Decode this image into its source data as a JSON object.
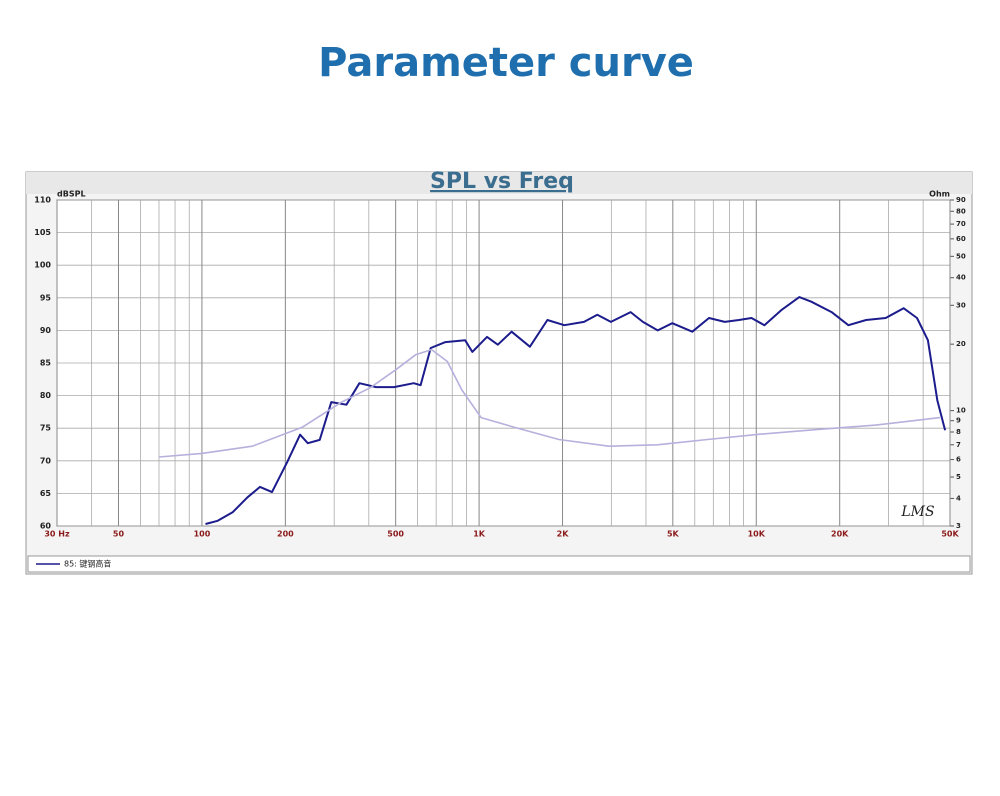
{
  "page_title": "Parameter curve",
  "chart_data": {
    "type": "line",
    "title": "SPL vs Freq",
    "ylabel": "dBSPL",
    "y2label": "Ohm",
    "logo": "LMS",
    "xlog": true,
    "y2log": true,
    "grid": true,
    "xlim": [
      30,
      50000
    ],
    "xticks": [
      {
        "value": 30,
        "label": "30 Hz"
      },
      50,
      100,
      200,
      500,
      {
        "value": 1000,
        "label": "1K"
      },
      {
        "value": 2000,
        "label": "2K"
      },
      {
        "value": 5000,
        "label": "5K"
      },
      {
        "value": 10000,
        "label": "10K"
      },
      {
        "value": 20000,
        "label": "20K"
      },
      {
        "value": 50000,
        "label": "50K"
      }
    ],
    "xminor": [
      40,
      60,
      70,
      80,
      90,
      300,
      400,
      600,
      700,
      800,
      900,
      3000,
      4000,
      6000,
      7000,
      8000,
      9000,
      30000,
      40000
    ],
    "ylim": [
      60,
      110
    ],
    "yticks": [
      60,
      65,
      70,
      75,
      80,
      85,
      90,
      95,
      100,
      105,
      110
    ],
    "y2lim": [
      3,
      90
    ],
    "y2ticks": [
      3,
      4,
      5,
      6,
      7,
      8,
      9,
      10,
      20,
      30,
      40,
      50,
      60,
      70,
      80,
      90
    ],
    "series": [
      {
        "name": "85: 键钢高音",
        "color": "#1c1c8c",
        "x": [
          103,
          114,
          129,
          146,
          162,
          179,
          203,
          226,
          241,
          266,
          293,
          332,
          370,
          425,
          493,
          581,
          615,
          669,
          756,
          890,
          945,
          1068,
          1168,
          1310,
          1525,
          1764,
          2030,
          2390,
          2670,
          2990,
          3520,
          3900,
          4410,
          4980,
          5880,
          6750,
          7700,
          8660,
          9610,
          10700,
          12300,
          14300,
          15800,
          18700,
          21500,
          24900,
          29300,
          34000,
          38000,
          41600,
          45000,
          48000
        ],
        "values": [
          60.3,
          60.8,
          62.1,
          64.4,
          66,
          65.2,
          69.8,
          74,
          72.7,
          73.2,
          79,
          78.6,
          81.9,
          81.3,
          81.3,
          81.9,
          81.6,
          87.3,
          88.2,
          88.5,
          86.7,
          89,
          87.8,
          89.8,
          87.5,
          91.6,
          90.8,
          91.3,
          92.4,
          91.3,
          92.8,
          91.3,
          90,
          91.1,
          89.8,
          91.9,
          91.3,
          91.6,
          91.9,
          90.8,
          93.1,
          95.1,
          94.4,
          92.8,
          90.8,
          91.6,
          91.9,
          93.4,
          91.9,
          88.5,
          79.3,
          74.7
        ]
      },
      {
        "color": "#b6b0dc",
        "axis": "y2",
        "x": [
          70,
          100,
          152,
          230,
          318,
          405,
          500,
          590,
          674,
          767,
          867,
          1017,
          1390,
          1940,
          2940,
          4400,
          6670,
          10100,
          16500,
          27000,
          46000
        ],
        "values": [
          6.16,
          6.4,
          6.9,
          8.4,
          10.9,
          12.7,
          15.3,
          17.9,
          18.9,
          16.7,
          12.4,
          9.3,
          8.3,
          7.4,
          6.9,
          7.0,
          7.4,
          7.8,
          8.2,
          8.6,
          9.3
        ]
      }
    ]
  }
}
